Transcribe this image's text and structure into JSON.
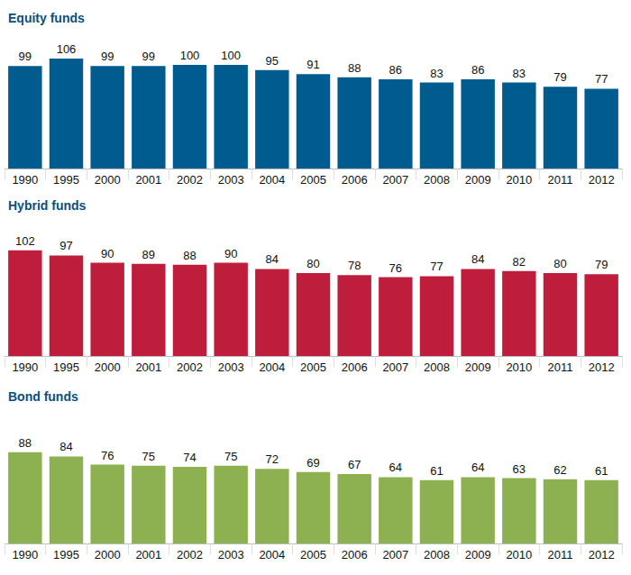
{
  "chart_data": [
    {
      "type": "bar",
      "title": "Equity funds",
      "categories": [
        "1990",
        "1995",
        "2000",
        "2001",
        "2002",
        "2003",
        "2004",
        "2005",
        "2006",
        "2007",
        "2008",
        "2009",
        "2010",
        "2011",
        "2012"
      ],
      "values": [
        99,
        106,
        99,
        99,
        100,
        100,
        95,
        91,
        88,
        86,
        83,
        86,
        83,
        79,
        77
      ],
      "color": "#005b8f",
      "ylim": [
        0,
        120
      ],
      "data_labels": true,
      "tick_labels": "x",
      "grid": false
    },
    {
      "type": "bar",
      "title": "Hybrid funds",
      "categories": [
        "1990",
        "1995",
        "2000",
        "2001",
        "2002",
        "2003",
        "2004",
        "2005",
        "2006",
        "2007",
        "2008",
        "2009",
        "2010",
        "2011",
        "2012"
      ],
      "values": [
        102,
        97,
        90,
        89,
        88,
        90,
        84,
        80,
        78,
        76,
        77,
        84,
        82,
        80,
        79
      ],
      "color": "#be1e3c",
      "ylim": [
        0,
        120
      ],
      "data_labels": true,
      "tick_labels": "x",
      "grid": false
    },
    {
      "type": "bar",
      "title": "Bond funds",
      "categories": [
        "1990",
        "1995",
        "2000",
        "2001",
        "2002",
        "2003",
        "2004",
        "2005",
        "2006",
        "2007",
        "2008",
        "2009",
        "2010",
        "2011",
        "2012"
      ],
      "values": [
        88,
        84,
        76,
        75,
        74,
        75,
        72,
        69,
        67,
        64,
        61,
        64,
        63,
        62,
        61
      ],
      "color": "#8db050",
      "ylim": [
        0,
        120
      ],
      "data_labels": true,
      "tick_labels": "x",
      "grid": false
    }
  ]
}
